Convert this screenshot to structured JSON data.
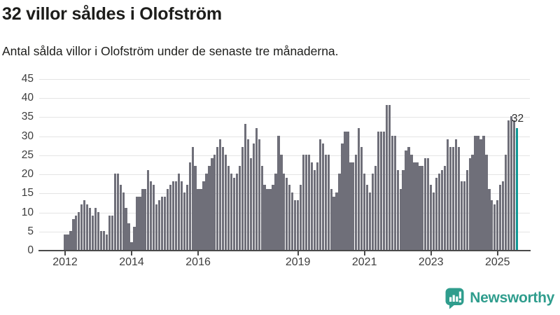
{
  "header": {
    "title": "32 villor såldes i Olofström",
    "subtitle": "Antal sålda villor i Olofström under de senaste tre månaderna."
  },
  "chart_data": {
    "type": "bar",
    "title": "32 villor såldes i Olofström",
    "x_start": "2012-01",
    "x_end": "2025-08",
    "x_granularity": "month",
    "ylim": [
      0,
      45
    ],
    "yticks": [
      0,
      5,
      10,
      15,
      20,
      25,
      30,
      35,
      40,
      45
    ],
    "xticks": [
      "2012",
      "2014",
      "2016",
      "2019",
      "2021",
      "2023",
      "2025"
    ],
    "grid": "horizontal",
    "annotation": "32",
    "highlight_last_bar": true,
    "values": [
      4,
      4,
      5,
      8,
      9,
      10,
      12,
      13,
      12,
      11,
      9,
      11,
      10,
      5,
      5,
      4,
      9,
      9,
      20,
      20,
      17,
      15,
      11,
      7,
      2,
      6,
      14,
      14,
      16,
      16,
      21,
      18,
      17,
      12,
      13,
      14,
      14,
      16,
      17,
      18,
      18,
      20,
      18,
      15,
      17,
      23,
      27,
      22,
      16,
      16,
      18,
      20,
      22,
      24,
      25,
      27,
      29,
      27,
      25,
      22,
      20,
      19,
      20,
      22,
      27,
      33,
      29,
      24,
      28,
      32,
      29,
      22,
      17,
      16,
      16,
      17,
      20,
      30,
      25,
      20,
      19,
      17,
      15,
      13,
      13,
      17,
      25,
      25,
      25,
      23,
      21,
      23,
      29,
      28,
      25,
      25,
      16,
      14,
      15,
      20,
      28,
      31,
      31,
      23,
      23,
      25,
      32,
      27,
      20,
      17,
      15,
      20,
      22,
      31,
      31,
      31,
      38,
      38,
      30,
      30,
      21,
      16,
      21,
      26,
      27,
      25,
      23,
      23,
      22,
      22,
      24,
      24,
      17,
      15,
      19,
      20,
      21,
      22,
      29,
      27,
      27,
      29,
      27,
      18,
      18,
      21,
      24,
      25,
      30,
      30,
      29,
      30,
      25,
      16,
      13,
      12,
      13,
      17,
      18,
      25,
      34,
      35,
      34,
      32
    ]
  },
  "colors": {
    "bar": "#6f6f79",
    "highlight": "#0f9795",
    "grid": "#e4e4e4",
    "axis": "#4a4a4a",
    "text": "#1d1d1b",
    "axis_text": "#3d3d3d",
    "logo": "#2f9d8d"
  },
  "branding": {
    "logo_text": "Newsworthy",
    "logo_icon": "newsworthy-speech-bubble-barchart-icon"
  }
}
